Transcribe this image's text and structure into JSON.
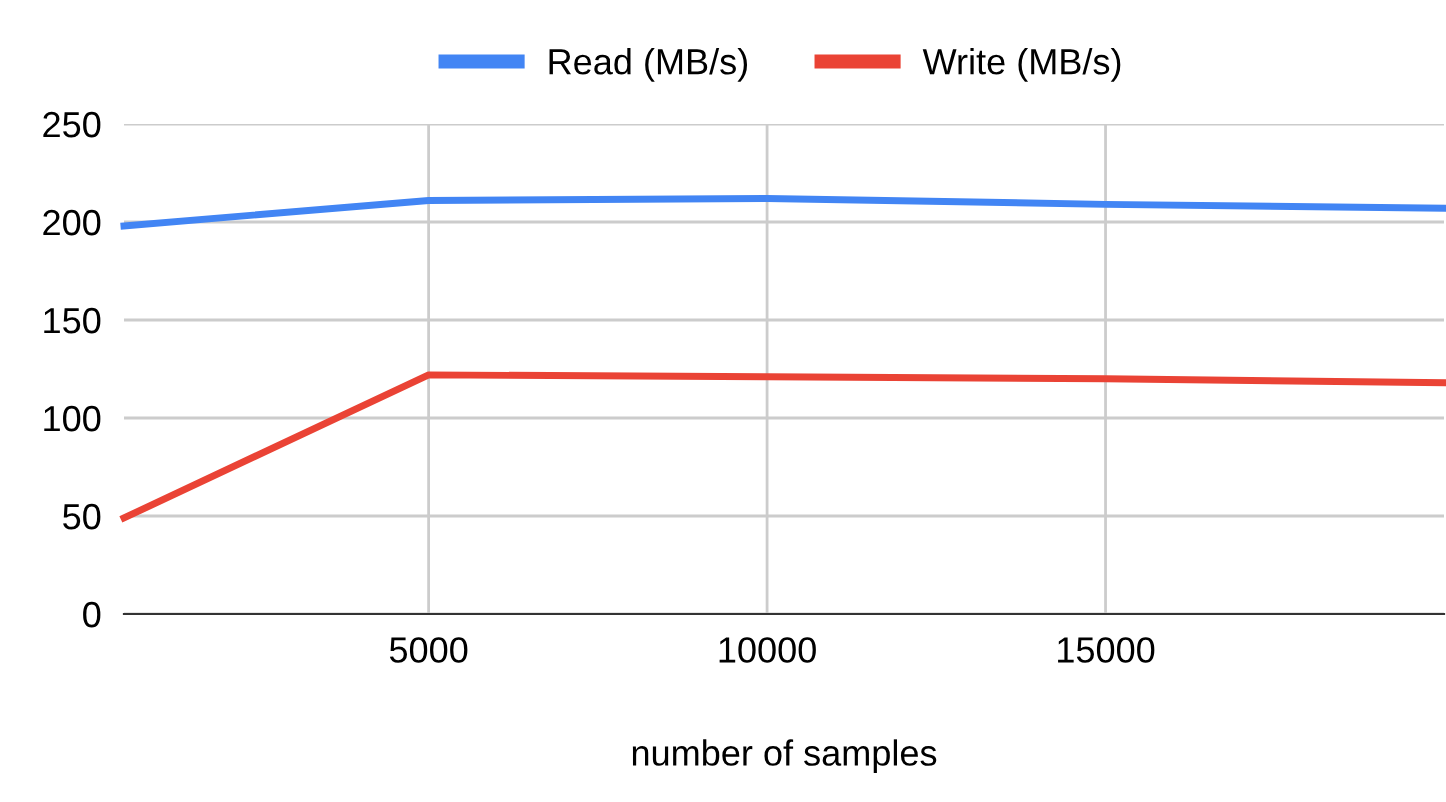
{
  "chart_data": {
    "type": "line",
    "xlabel": "number of samples",
    "x": [
      500,
      5000,
      10000,
      15000,
      20000
    ],
    "series": [
      {
        "name": "Read (MB/s)",
        "color": "#4285f4",
        "values": [
          198,
          211,
          212,
          209,
          207
        ]
      },
      {
        "name": "Write (MB/s)",
        "color": "#ea4335",
        "values": [
          49,
          122,
          121,
          120,
          118
        ]
      }
    ],
    "xlim": [
      500,
      20000
    ],
    "xticks": [
      5000,
      10000,
      15000
    ],
    "ylim": [
      0,
      250
    ],
    "yticks": [
      0,
      50,
      100,
      150,
      200,
      250
    ],
    "grid": true,
    "legend": "top",
    "marker": "none",
    "line_style": "solid"
  }
}
